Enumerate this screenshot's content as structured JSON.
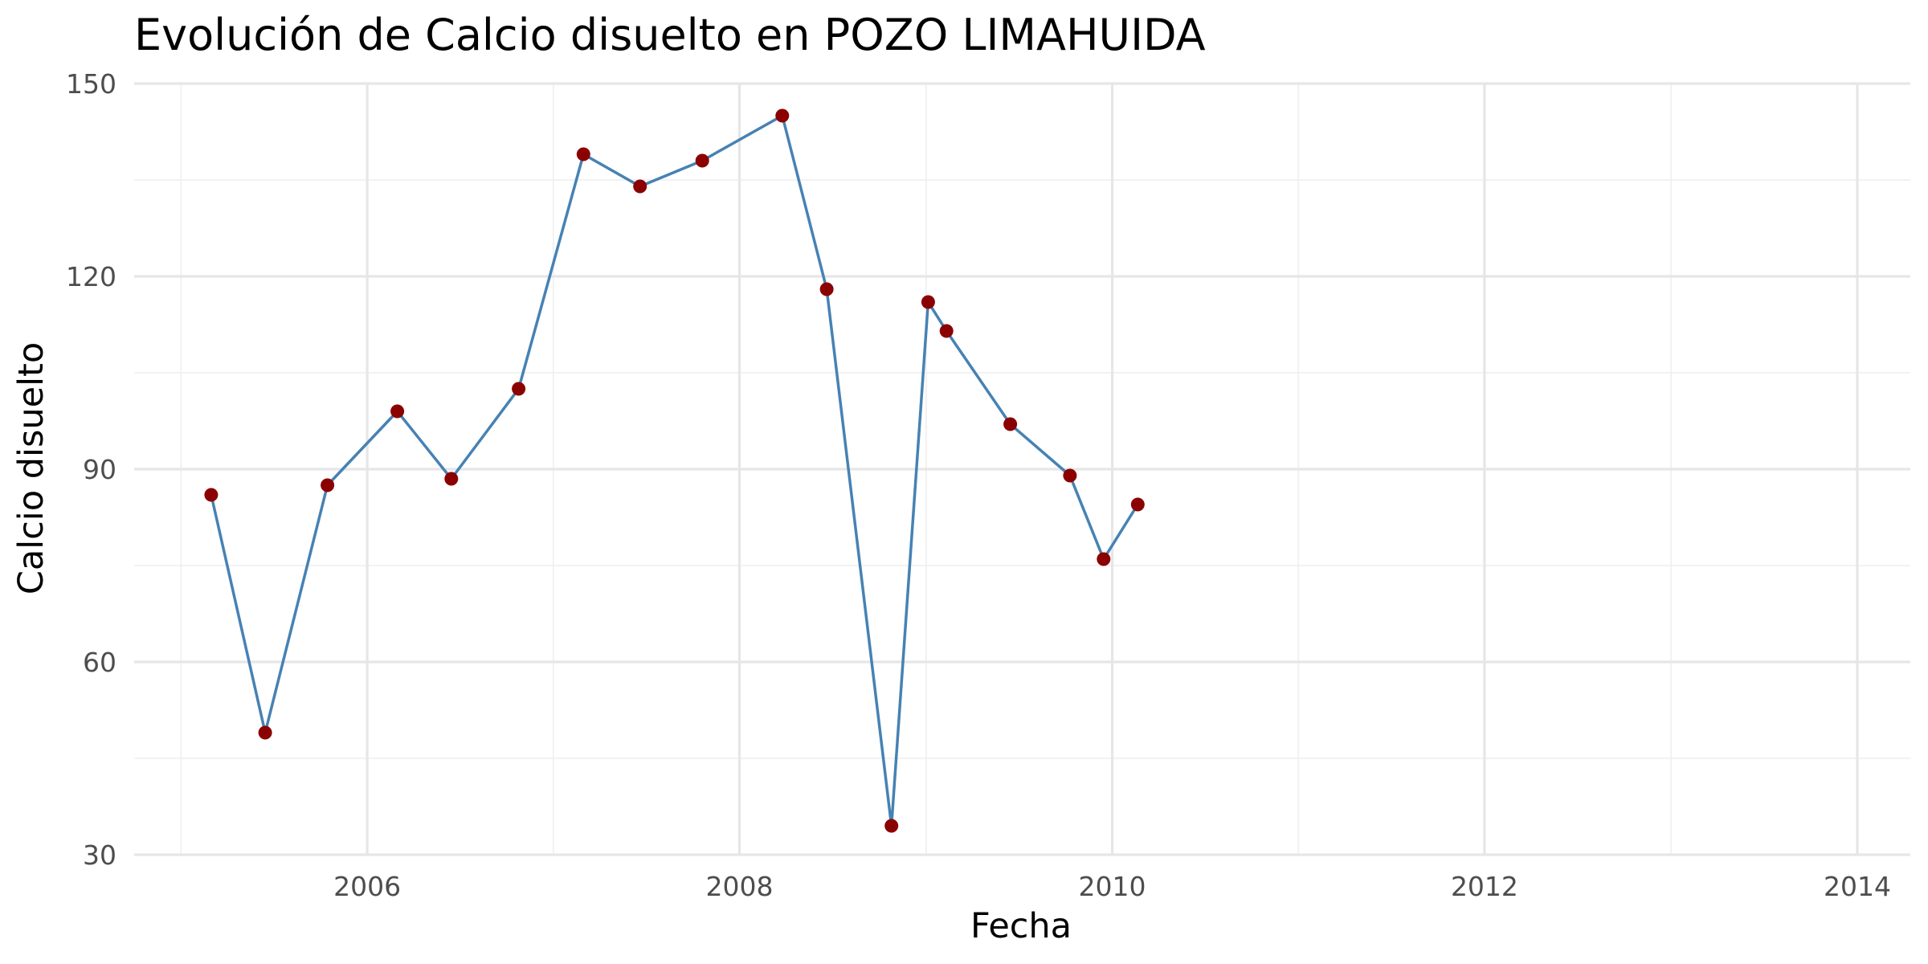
{
  "chart_data": {
    "type": "line",
    "title": "Evolución de Calcio disuelto en POZO LIMAHUIDA",
    "xlabel": "Fecha",
    "ylabel": "Calcio disuelto",
    "x_is_date": true,
    "xlim": [
      "2004-10-01",
      "2014-04-15"
    ],
    "ylim": [
      30,
      150
    ],
    "x_ticks": [
      {
        "date": "2006-01-01",
        "label": "2006"
      },
      {
        "date": "2008-01-01",
        "label": "2008"
      },
      {
        "date": "2010-01-01",
        "label": "2010"
      },
      {
        "date": "2012-01-01",
        "label": "2012"
      },
      {
        "date": "2014-01-01",
        "label": "2014"
      }
    ],
    "x_minor_ticks": [
      "2005-01-01",
      "2007-01-01",
      "2009-01-01",
      "2011-01-01",
      "2013-01-01"
    ],
    "y_ticks": [
      30,
      60,
      90,
      120,
      150
    ],
    "y_minor_ticks": [
      45,
      75,
      105,
      135
    ],
    "grid": true,
    "legend": "none",
    "colors": {
      "line": "#4682b4",
      "points": "#8b0000"
    },
    "series": [
      {
        "x": [
          "2005-03-01",
          "2005-06-15",
          "2005-10-15",
          "2006-03-01",
          "2006-06-15",
          "2006-10-25",
          "2007-03-01",
          "2007-06-20",
          "2007-10-20",
          "2008-03-25",
          "2008-06-20",
          "2008-10-25",
          "2009-01-05",
          "2009-02-10",
          "2009-06-15",
          "2009-10-10",
          "2009-12-15",
          "2010-02-20"
        ],
        "y": [
          86,
          49,
          87.5,
          99,
          88.5,
          102.5,
          139,
          134,
          138,
          145,
          118,
          34.5,
          116,
          111.5,
          97,
          89,
          76,
          84.5
        ]
      }
    ]
  }
}
